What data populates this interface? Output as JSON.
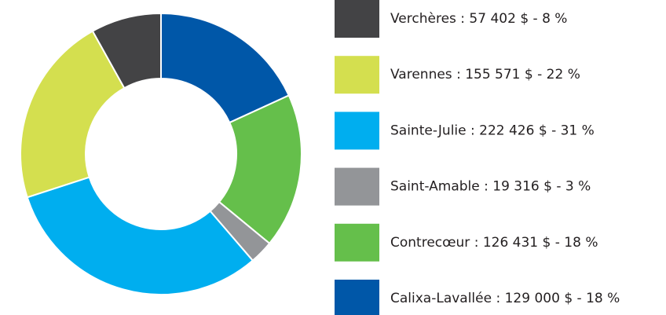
{
  "chart_data": {
    "type": "donut",
    "categories": [
      "Verchères",
      "Varennes",
      "Sainte-Julie",
      "Saint-Amable",
      "Contrecœur",
      "Calixa-Lavallée"
    ],
    "values": [
      57402,
      155571,
      222426,
      19316,
      126431,
      129000
    ],
    "legend_labels": [
      "Verchères : 57 402 $ - 8 %",
      "Varennes : 155 571 $ - 22 %",
      "Sainte-Julie : 222 426 $ - 31 %",
      "Saint-Amable : 19 316 $ - 3 %",
      "Contrecœur : 126 431 $ - 18 %",
      "Calixa-Lavallée : 129 000 $ - 18 %"
    ],
    "colors": [
      "#434345",
      "#d4df4f",
      "#00aeef",
      "#939598",
      "#65bf4b",
      "#0057a8"
    ],
    "legend": "right"
  }
}
